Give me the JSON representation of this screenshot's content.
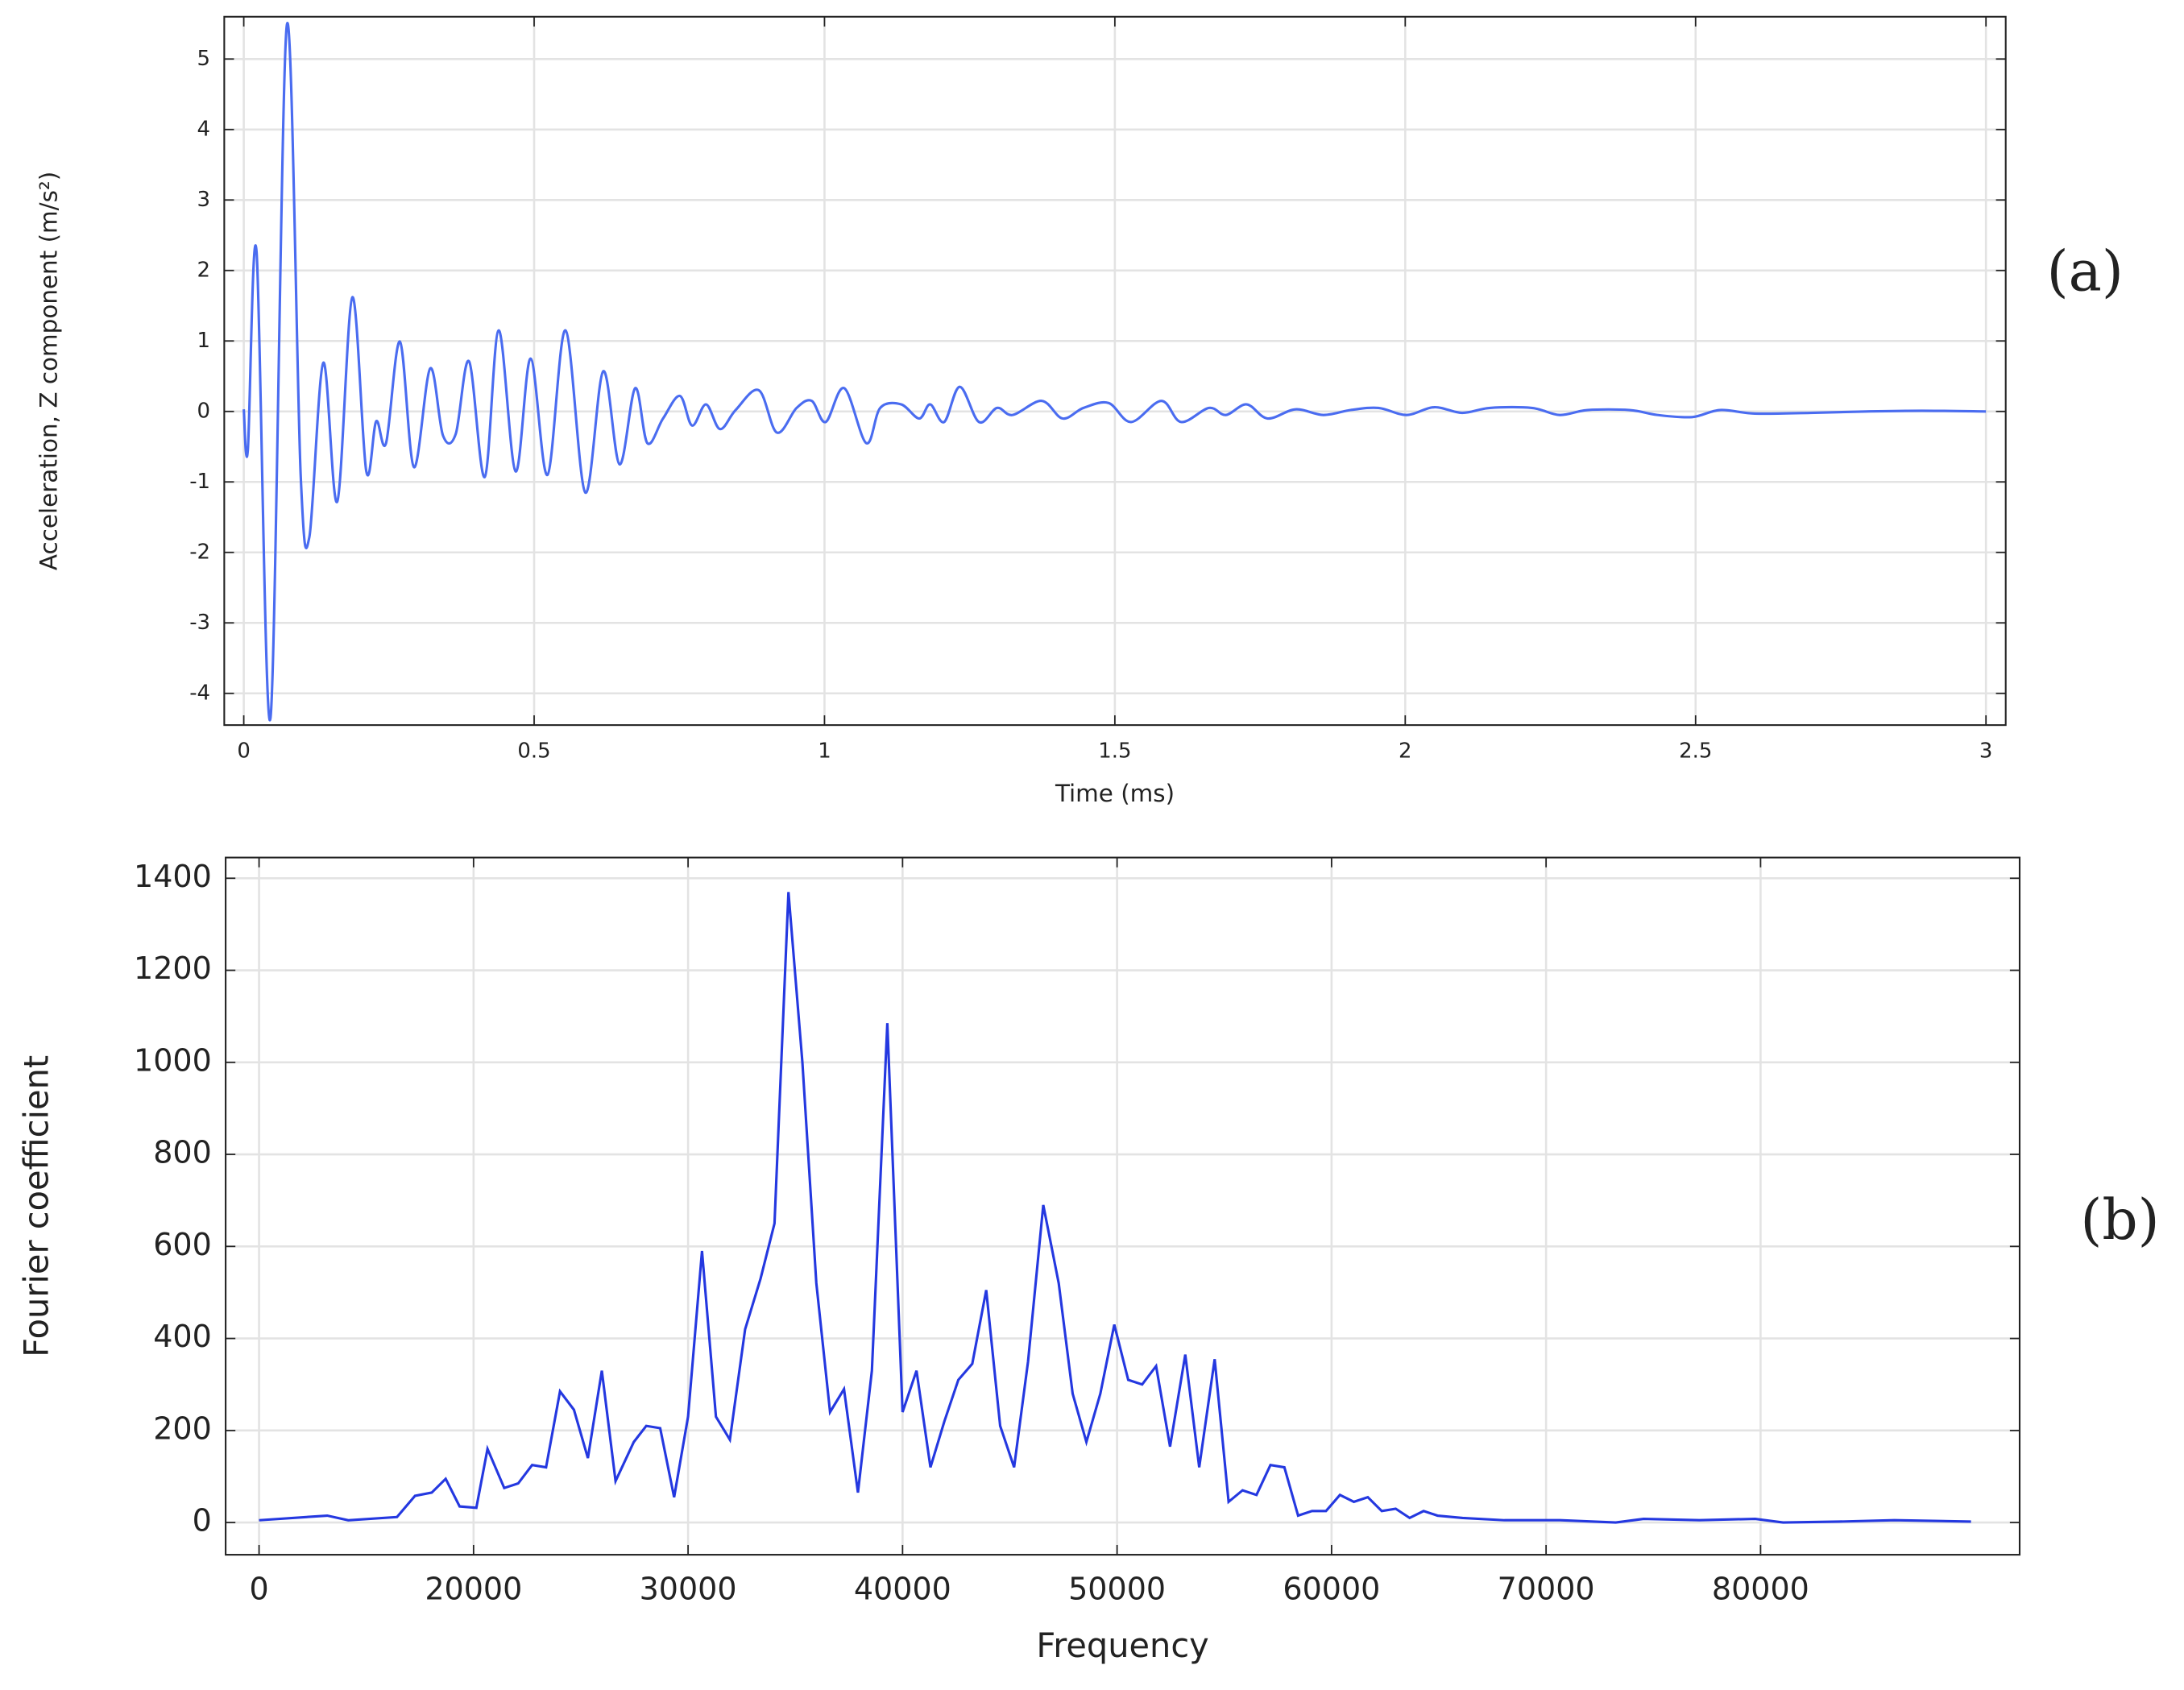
{
  "chart_data": [
    {
      "type": "line",
      "ylabel": "Acceleration, Z component (m/s²)",
      "xlabel": "Time (ms)",
      "annotation": "(a)",
      "xlim": [
        -0.0336,
        3.034
      ],
      "ylim": [
        -4.45,
        5.6
      ],
      "xticks": [
        0,
        0.5,
        1,
        1.5,
        2,
        2.5,
        3
      ],
      "yticks": [
        -4,
        -3,
        -2,
        -1,
        0,
        1,
        2,
        3,
        4,
        5
      ],
      "grid": true,
      "series": [
        {
          "name": "Acceleration",
          "color": "#4a6cf0",
          "x": [
            0,
            0.007,
            0.022,
            0.046,
            0.074,
            0.098,
            0.113,
            0.137,
            0.161,
            0.187,
            0.211,
            0.228,
            0.245,
            0.269,
            0.293,
            0.321,
            0.343,
            0.365,
            0.388,
            0.415,
            0.439,
            0.468,
            0.494,
            0.523,
            0.554,
            0.588,
            0.619,
            0.647,
            0.674,
            0.695,
            0.722,
            0.751,
            0.772,
            0.796,
            0.82,
            0.847,
            0.887,
            0.918,
            0.952,
            0.978,
            1.002,
            1.034,
            1.072,
            1.096,
            1.132,
            1.163,
            1.182,
            1.206,
            1.233,
            1.266,
            1.297,
            1.324,
            1.374,
            1.41,
            1.446,
            1.489,
            1.528,
            1.58,
            1.614,
            1.662,
            1.691,
            1.727,
            1.763,
            1.811,
            1.859,
            1.906,
            1.954,
            2.002,
            2.05,
            2.098,
            2.146,
            2.218,
            2.266,
            2.314,
            2.386,
            2.434,
            2.494,
            2.542,
            2.602,
            2.698,
            2.794,
            2.89,
            3.0
          ],
          "values": [
            0.03,
            -0.55,
            2.27,
            -4.35,
            5.47,
            -0.9,
            -1.78,
            0.69,
            -1.28,
            1.62,
            -0.85,
            -0.14,
            -0.45,
            0.99,
            -0.79,
            0.61,
            -0.34,
            -0.32,
            0.71,
            -0.93,
            1.15,
            -0.85,
            0.75,
            -0.9,
            1.15,
            -1.15,
            0.57,
            -0.75,
            0.33,
            -0.45,
            -0.1,
            0.22,
            -0.2,
            0.1,
            -0.25,
            0.02,
            0.3,
            -0.3,
            0.05,
            0.15,
            -0.15,
            0.33,
            -0.45,
            0.05,
            0.1,
            -0.1,
            0.1,
            -0.15,
            0.35,
            -0.15,
            0.05,
            -0.05,
            0.15,
            -0.1,
            0.05,
            0.12,
            -0.15,
            0.15,
            -0.15,
            0.05,
            -0.05,
            0.1,
            -0.1,
            0.03,
            -0.05,
            0.02,
            0.05,
            -0.05,
            0.06,
            -0.02,
            0.05,
            0.05,
            -0.05,
            0.02,
            0.02,
            -0.05,
            -0.08,
            0.02,
            -0.03,
            -0.02,
            0,
            0.01,
            0
          ]
        }
      ]
    },
    {
      "type": "line",
      "ylabel": "Fourier coefficient",
      "xlabel": "Frequency",
      "annotation": "(b)",
      "xlim": [
        8442,
        92078
      ],
      "ylim": [
        -70,
        1445
      ],
      "xticks": [
        {
          "value": 10000,
          "label": "0"
        },
        20000,
        30000,
        40000,
        50000,
        60000,
        70000,
        80000
      ],
      "yticks": [
        0,
        200,
        400,
        600,
        800,
        1000,
        1200,
        1400
      ],
      "grid": true,
      "series": [
        {
          "name": "Fourier coefficient",
          "color": "#2438e0",
          "x": [
            10000,
            13180,
            14160,
            16430,
            17270,
            18050,
            18700,
            19350,
            20130,
            20650,
            21430,
            22080,
            22730,
            23380,
            24030,
            24680,
            25330,
            25980,
            26620,
            27470,
            28050,
            28700,
            29350,
            30000,
            30650,
            31300,
            31950,
            32660,
            33380,
            34030,
            34680,
            35330,
            35980,
            36620,
            37270,
            37920,
            38570,
            39290,
            40000,
            40650,
            41300,
            41950,
            42600,
            43250,
            43900,
            44550,
            45200,
            45850,
            46560,
            47280,
            47930,
            48570,
            49220,
            49870,
            50520,
            51170,
            51820,
            52470,
            53180,
            53830,
            54550,
            55200,
            55850,
            56500,
            57150,
            57800,
            58440,
            59090,
            59740,
            60390,
            61040,
            61690,
            62340,
            62990,
            63640,
            64290,
            64940,
            66110,
            68060,
            70650,
            73250,
            74550,
            77150,
            79750,
            81050,
            83650,
            86240,
            89810
          ],
          "values": [
            5,
            15,
            5,
            12,
            58,
            65,
            95,
            35,
            32,
            160,
            75,
            85,
            125,
            120,
            285,
            245,
            140,
            330,
            90,
            175,
            210,
            205,
            55,
            230,
            590,
            230,
            180,
            420,
            530,
            650,
            1370,
            1000,
            520,
            240,
            290,
            65,
            330,
            1085,
            240,
            330,
            120,
            220,
            310,
            345,
            505,
            210,
            120,
            350,
            690,
            520,
            280,
            175,
            280,
            430,
            310,
            300,
            340,
            165,
            365,
            120,
            355,
            45,
            70,
            60,
            125,
            120,
            15,
            25,
            25,
            60,
            45,
            55,
            25,
            30,
            10,
            25,
            15,
            10,
            5,
            5,
            0,
            8,
            5,
            8,
            0,
            2,
            5,
            2
          ]
        }
      ]
    }
  ]
}
